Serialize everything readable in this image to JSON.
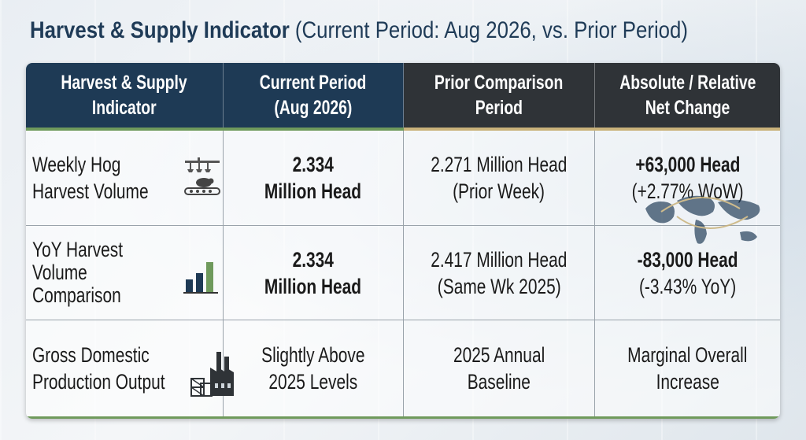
{
  "title": {
    "bold": "Harvest & Supply Indicator",
    "rest": "(Current Period: Aug 2026, vs. Prior Period)"
  },
  "headers": [
    [
      "Harvest & Supply",
      "Indicator"
    ],
    [
      "Current Period",
      "(Aug 2026)"
    ],
    [
      "Prior Comparison",
      "Period"
    ],
    [
      "Absolute / Relative",
      "Net Change"
    ]
  ],
  "rows": [
    {
      "indicator": [
        "Weekly Hog",
        "Harvest Volume"
      ],
      "current": [
        "2.334",
        "Million Head"
      ],
      "prior": [
        "2.271 Million Head",
        "(Prior Week)"
      ],
      "change": [
        "+63,000 Head",
        "(+2.77% WoW)"
      ],
      "icon": "hog-processing-icon"
    },
    {
      "indicator": [
        "YoY Harvest",
        "Volume",
        "Comparison"
      ],
      "current": [
        "2.334",
        "Million Head"
      ],
      "prior": [
        "2.417 Million Head",
        "(Same Wk 2025)"
      ],
      "change": [
        "-83,000 Head",
        "(-3.43% YoY)"
      ],
      "icon": "bar-chart-icon"
    },
    {
      "indicator": [
        "Gross Domestic",
        "Production Output"
      ],
      "current": [
        "Slightly Above",
        "2025 Levels"
      ],
      "prior": [
        "2025 Annual",
        "Baseline"
      ],
      "change": [
        "Marginal Overall",
        "Increase"
      ],
      "icon": "factory-icon"
    }
  ],
  "colors": {
    "header_blue": "#1e3a55",
    "header_dark": "#2f3337",
    "accent_green": "#6f9a5c",
    "accent_gold": "#c9b27a",
    "title_color": "#1f3b57"
  }
}
